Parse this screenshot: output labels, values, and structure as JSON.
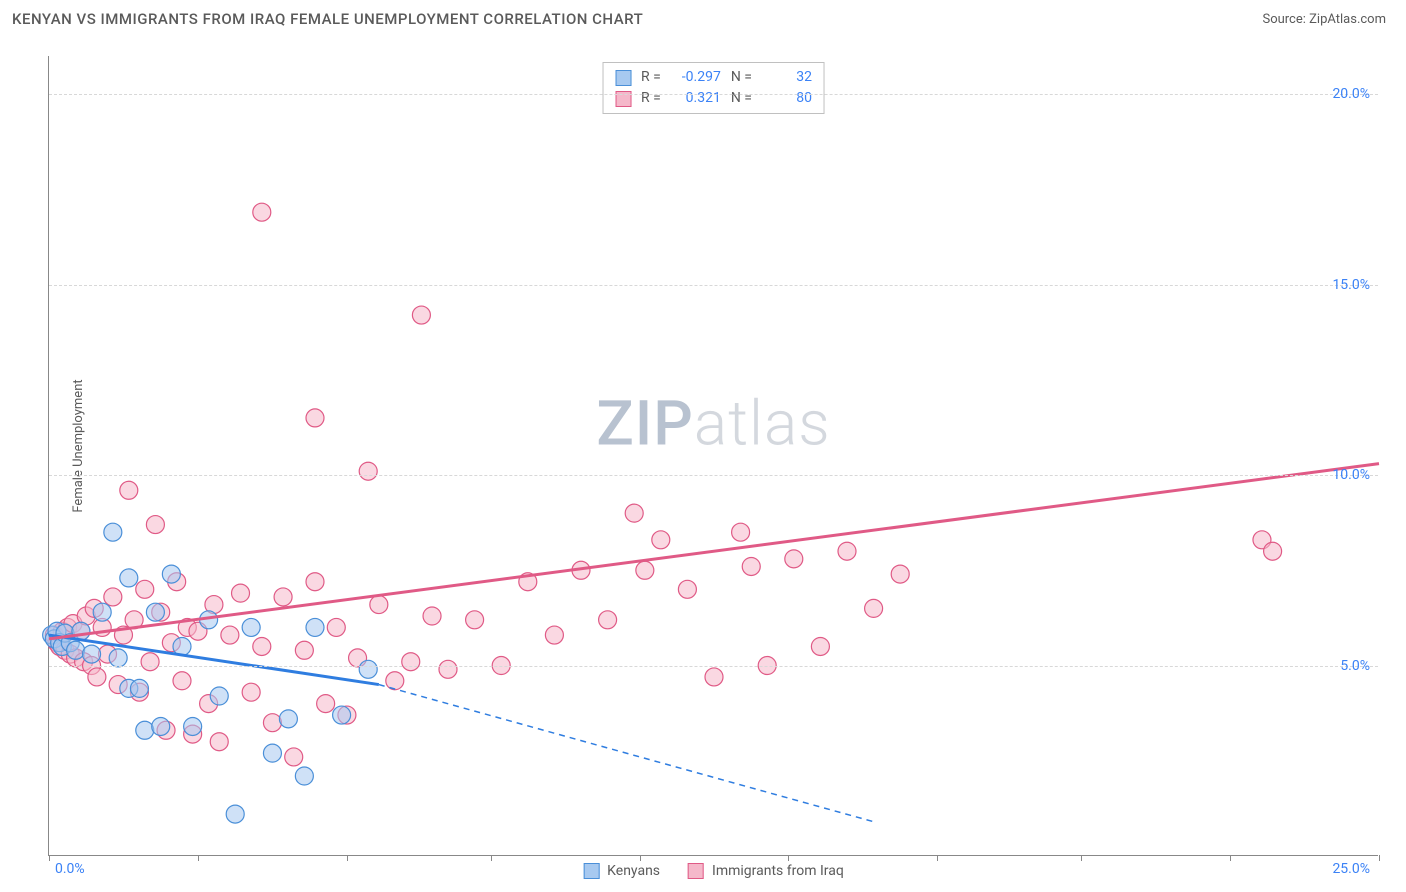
{
  "header": {
    "title": "KENYAN VS IMMIGRANTS FROM IRAQ FEMALE UNEMPLOYMENT CORRELATION CHART",
    "source": "Source: ZipAtlas.com"
  },
  "chart": {
    "type": "scatter",
    "ylabel": "Female Unemployment",
    "xlim": [
      0,
      25
    ],
    "ylim": [
      0,
      21
    ],
    "x_ticks": [
      0,
      2.8,
      5.6,
      8.3,
      11.1,
      13.9,
      16.7,
      19.4,
      22.2,
      25
    ],
    "x_origin_label": "0.0%",
    "x_end_label": "25.0%",
    "y_gridlines": [
      {
        "value": 5,
        "label": "5.0%"
      },
      {
        "value": 10,
        "label": "10.0%"
      },
      {
        "value": 15,
        "label": "15.0%"
      },
      {
        "value": 20,
        "label": "20.0%"
      }
    ],
    "background_color": "#ffffff",
    "grid_color": "#d8d8d8",
    "axis_color": "#888888",
    "tick_label_color": "#3b82f6",
    "watermark": {
      "text_bold": "ZIP",
      "text_light": "atlas"
    },
    "series": {
      "kenyans": {
        "label": "Kenyans",
        "fill": "#a7c9f0",
        "stroke": "#4a8fd8",
        "line_color": "#2f7de0",
        "marker_radius": 9,
        "fill_opacity": 0.55,
        "r_value": "-0.297",
        "n_value": "32",
        "trend": {
          "x1": 0,
          "y1": 5.8,
          "x2": 6.2,
          "y2": 4.5,
          "x2_dash": 15.5,
          "y2_dash": 0.9
        },
        "points": [
          [
            0.05,
            5.8
          ],
          [
            0.1,
            5.7
          ],
          [
            0.15,
            5.9
          ],
          [
            0.2,
            5.6
          ],
          [
            0.25,
            5.5
          ],
          [
            0.3,
            5.85
          ],
          [
            0.4,
            5.6
          ],
          [
            0.5,
            5.4
          ],
          [
            0.6,
            5.9
          ],
          [
            0.8,
            5.3
          ],
          [
            1.0,
            6.4
          ],
          [
            1.2,
            8.5
          ],
          [
            1.3,
            5.2
          ],
          [
            1.5,
            4.4
          ],
          [
            1.5,
            7.3
          ],
          [
            1.7,
            4.4
          ],
          [
            1.8,
            3.3
          ],
          [
            2.0,
            6.4
          ],
          [
            2.1,
            3.4
          ],
          [
            2.3,
            7.4
          ],
          [
            2.5,
            5.5
          ],
          [
            2.7,
            3.4
          ],
          [
            3.0,
            6.2
          ],
          [
            3.2,
            4.2
          ],
          [
            3.5,
            1.1
          ],
          [
            3.8,
            6.0
          ],
          [
            4.2,
            2.7
          ],
          [
            4.5,
            3.6
          ],
          [
            4.8,
            2.1
          ],
          [
            5.0,
            6.0
          ],
          [
            5.5,
            3.7
          ],
          [
            6.0,
            4.9
          ]
        ]
      },
      "iraqis": {
        "label": "Immigrants from Iraq",
        "fill": "#f5b8ca",
        "stroke": "#e05a86",
        "line_color": "#e05a86",
        "marker_radius": 9,
        "fill_opacity": 0.55,
        "r_value": "0.321",
        "n_value": "80",
        "trend": {
          "x1": 0,
          "y1": 5.7,
          "x2": 25,
          "y2": 10.3
        },
        "points": [
          [
            0.1,
            5.8
          ],
          [
            0.15,
            5.6
          ],
          [
            0.2,
            5.5
          ],
          [
            0.25,
            5.9
          ],
          [
            0.3,
            5.4
          ],
          [
            0.35,
            6.0
          ],
          [
            0.4,
            5.3
          ],
          [
            0.45,
            6.1
          ],
          [
            0.5,
            5.2
          ],
          [
            0.6,
            5.9
          ],
          [
            0.65,
            5.1
          ],
          [
            0.7,
            6.3
          ],
          [
            0.8,
            5.0
          ],
          [
            0.85,
            6.5
          ],
          [
            0.9,
            4.7
          ],
          [
            1.0,
            6.0
          ],
          [
            1.1,
            5.3
          ],
          [
            1.2,
            6.8
          ],
          [
            1.3,
            4.5
          ],
          [
            1.4,
            5.8
          ],
          [
            1.5,
            9.6
          ],
          [
            1.6,
            6.2
          ],
          [
            1.7,
            4.3
          ],
          [
            1.8,
            7.0
          ],
          [
            1.9,
            5.1
          ],
          [
            2.0,
            8.7
          ],
          [
            2.1,
            6.4
          ],
          [
            2.2,
            3.3
          ],
          [
            2.3,
            5.6
          ],
          [
            2.4,
            7.2
          ],
          [
            2.5,
            4.6
          ],
          [
            2.6,
            6.0
          ],
          [
            2.7,
            3.2
          ],
          [
            2.8,
            5.9
          ],
          [
            3.0,
            4.0
          ],
          [
            3.1,
            6.6
          ],
          [
            3.2,
            3.0
          ],
          [
            3.4,
            5.8
          ],
          [
            3.6,
            6.9
          ],
          [
            3.8,
            4.3
          ],
          [
            4.0,
            16.9
          ],
          [
            4.0,
            5.5
          ],
          [
            4.2,
            3.5
          ],
          [
            4.4,
            6.8
          ],
          [
            4.6,
            2.6
          ],
          [
            4.8,
            5.4
          ],
          [
            5.0,
            11.5
          ],
          [
            5.0,
            7.2
          ],
          [
            5.2,
            4.0
          ],
          [
            5.4,
            6.0
          ],
          [
            5.6,
            3.7
          ],
          [
            5.8,
            5.2
          ],
          [
            6.0,
            10.1
          ],
          [
            6.2,
            6.6
          ],
          [
            6.5,
            4.6
          ],
          [
            6.8,
            5.1
          ],
          [
            7.0,
            14.2
          ],
          [
            7.2,
            6.3
          ],
          [
            7.5,
            4.9
          ],
          [
            8.0,
            6.2
          ],
          [
            8.5,
            5.0
          ],
          [
            9.0,
            7.2
          ],
          [
            9.5,
            5.8
          ],
          [
            10.0,
            7.5
          ],
          [
            10.5,
            6.2
          ],
          [
            11.0,
            9.0
          ],
          [
            11.2,
            7.5
          ],
          [
            11.5,
            8.3
          ],
          [
            12.0,
            7.0
          ],
          [
            12.5,
            4.7
          ],
          [
            13.0,
            8.5
          ],
          [
            13.2,
            7.6
          ],
          [
            13.5,
            5.0
          ],
          [
            14.0,
            7.8
          ],
          [
            14.5,
            5.5
          ],
          [
            15.0,
            8.0
          ],
          [
            15.5,
            6.5
          ],
          [
            16.0,
            7.4
          ],
          [
            22.8,
            8.3
          ],
          [
            23.0,
            8.0
          ]
        ]
      }
    },
    "stats_box_labels": {
      "r": "R =",
      "n": "N ="
    },
    "legend_position": "bottom-center"
  }
}
